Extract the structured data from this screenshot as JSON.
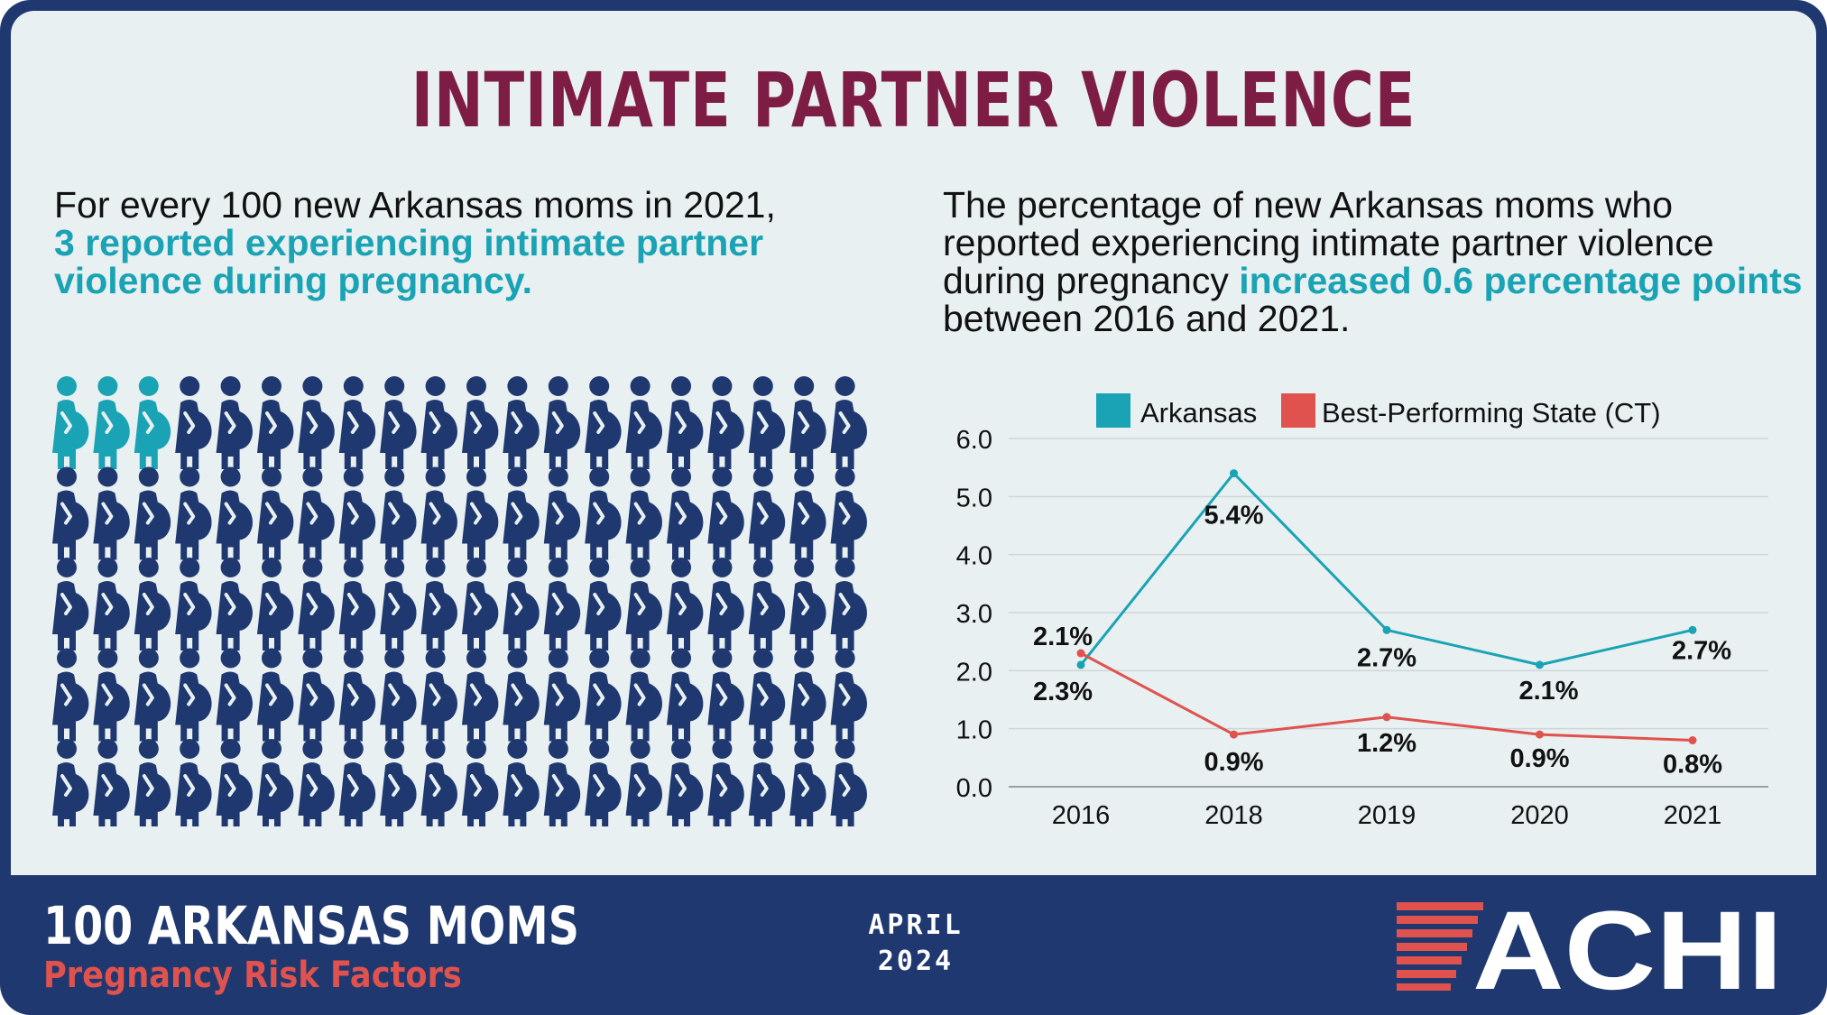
{
  "title": "INTIMATE PARTNER VIOLENCE",
  "intro_left": {
    "text1": "For every 100 new Arkansas moms in 2021,",
    "highlight": "3 reported experiencing intimate partner violence during pregnancy."
  },
  "intro_right": {
    "text1": "The percentage of new Arkansas moms  who reported experiencing intimate partner violence during pregnancy",
    "highlight": "increased 0.6 percentage points",
    "text2": "between 2016 and 2021."
  },
  "icon_grid": {
    "total": 100,
    "highlighted": 3,
    "highlight_color": "#1aa3b4",
    "base_color": "#1f3870",
    "icon": "pregnant-woman-icon"
  },
  "chart_data": {
    "type": "line",
    "categories": [
      "2016",
      "2018",
      "2019",
      "2020",
      "2021"
    ],
    "series": [
      {
        "name": "Arkansas",
        "color": "#1aa3b4",
        "values": [
          2.1,
          5.4,
          2.7,
          2.1,
          2.7
        ],
        "labels": [
          "2.1%",
          "5.4%",
          "2.7%",
          "2.1%",
          "2.7%"
        ]
      },
      {
        "name": "Best-Performing State (CT)",
        "color": "#e0524d",
        "values": [
          2.3,
          0.9,
          1.2,
          0.9,
          0.8
        ],
        "labels": [
          "2.3%",
          "0.9%",
          "1.2%",
          "0.9%",
          "0.8%"
        ]
      }
    ],
    "yticks": [
      "0.0",
      "1.0",
      "2.0",
      "3.0",
      "4.0",
      "5.0",
      "6.0"
    ],
    "ylim": [
      0,
      6
    ],
    "grid": true,
    "legend": "top"
  },
  "footer": {
    "title": "100 ARKANSAS MOMS",
    "subtitle": "Pregnancy Risk Factors",
    "month": "APRIL",
    "year": "2024",
    "logo_text": "ACHI",
    "logo_accent": "#e0524d"
  }
}
